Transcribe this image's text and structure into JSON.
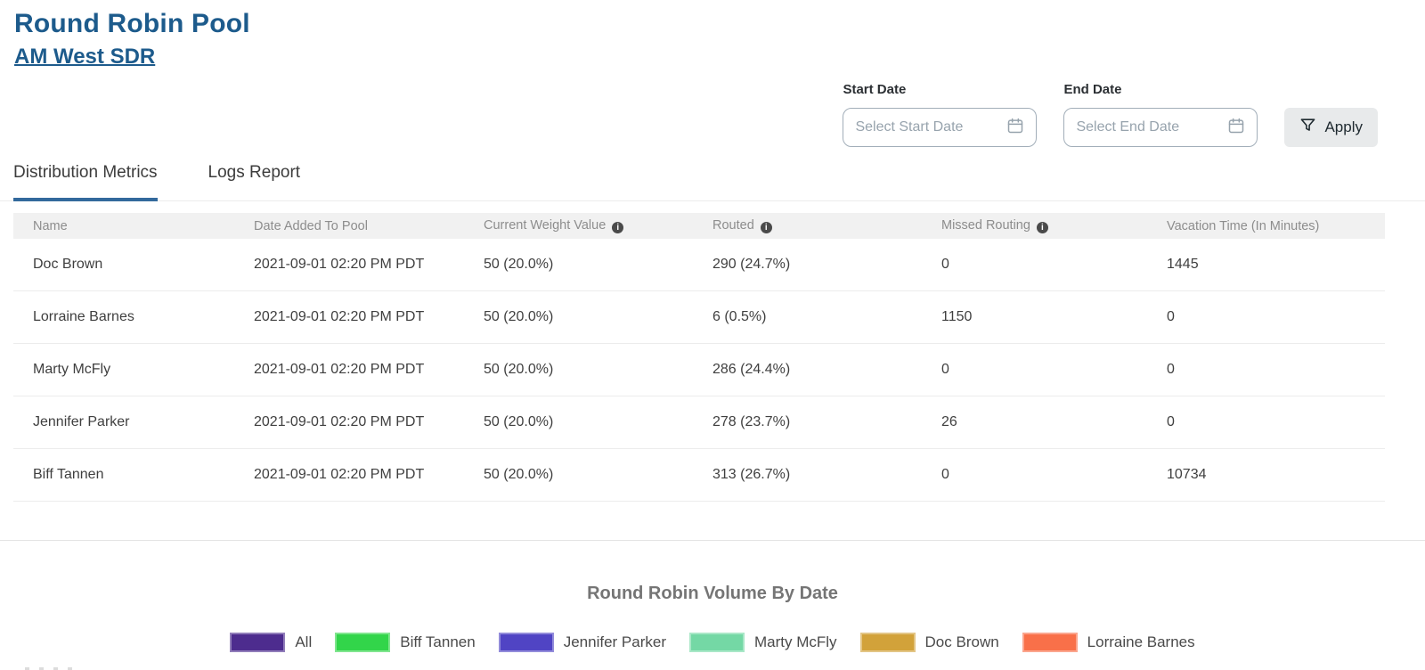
{
  "header": {
    "title": "Round Robin Pool",
    "pool_link": "AM West SDR"
  },
  "filters": {
    "start_date_label": "Start Date",
    "end_date_label": "End Date",
    "start_date_placeholder": "Select Start Date",
    "end_date_placeholder": "Select End Date",
    "apply_label": "Apply"
  },
  "tabs": [
    {
      "label": "Distribution Metrics",
      "active": true
    },
    {
      "label": "Logs Report",
      "active": false
    }
  ],
  "table": {
    "columns": [
      {
        "label": "Name",
        "info": false
      },
      {
        "label": "Date Added To Pool",
        "info": false
      },
      {
        "label": "Current Weight Value",
        "info": true
      },
      {
        "label": "Routed",
        "info": true
      },
      {
        "label": "Missed Routing",
        "info": true
      },
      {
        "label": "Vacation Time (In Minutes)",
        "info": false
      }
    ],
    "rows": [
      [
        "Doc Brown",
        "2021-09-01 02:20 PM PDT",
        "50 (20.0%)",
        "290 (24.7%)",
        "0",
        "1445"
      ],
      [
        "Lorraine Barnes",
        "2021-09-01 02:20 PM PDT",
        "50 (20.0%)",
        "6 (0.5%)",
        "1150",
        "0"
      ],
      [
        "Marty McFly",
        "2021-09-01 02:20 PM PDT",
        "50 (20.0%)",
        "286 (24.4%)",
        "0",
        "0"
      ],
      [
        "Jennifer Parker",
        "2021-09-01 02:20 PM PDT",
        "50 (20.0%)",
        "278 (23.7%)",
        "26",
        "0"
      ],
      [
        "Biff Tannen",
        "2021-09-01 02:20 PM PDT",
        "50 (20.0%)",
        "313 (26.7%)",
        "0",
        "10734"
      ]
    ]
  },
  "chart": {
    "title": "Round Robin Volume By Date",
    "legend": [
      {
        "label": "All",
        "color": "#4d2c8e"
      },
      {
        "label": "Biff Tannen",
        "color": "#32d54a"
      },
      {
        "label": "Jennifer Parker",
        "color": "#5044c4"
      },
      {
        "label": "Marty McFly",
        "color": "#74d8a5"
      },
      {
        "label": "Doc Brown",
        "color": "#d2a23a"
      },
      {
        "label": "Lorraine Barnes",
        "color": "#f97049"
      }
    ]
  },
  "icons": {
    "info_glyph": "i"
  },
  "colors": {
    "title_blue": "#1d5b8c",
    "tab_underline": "#33699c",
    "header_row_bg": "#f1f1f1",
    "header_text": "#8d8d8d",
    "body_text": "#3f3f3f",
    "apply_button_bg": "#e8eaeb"
  }
}
